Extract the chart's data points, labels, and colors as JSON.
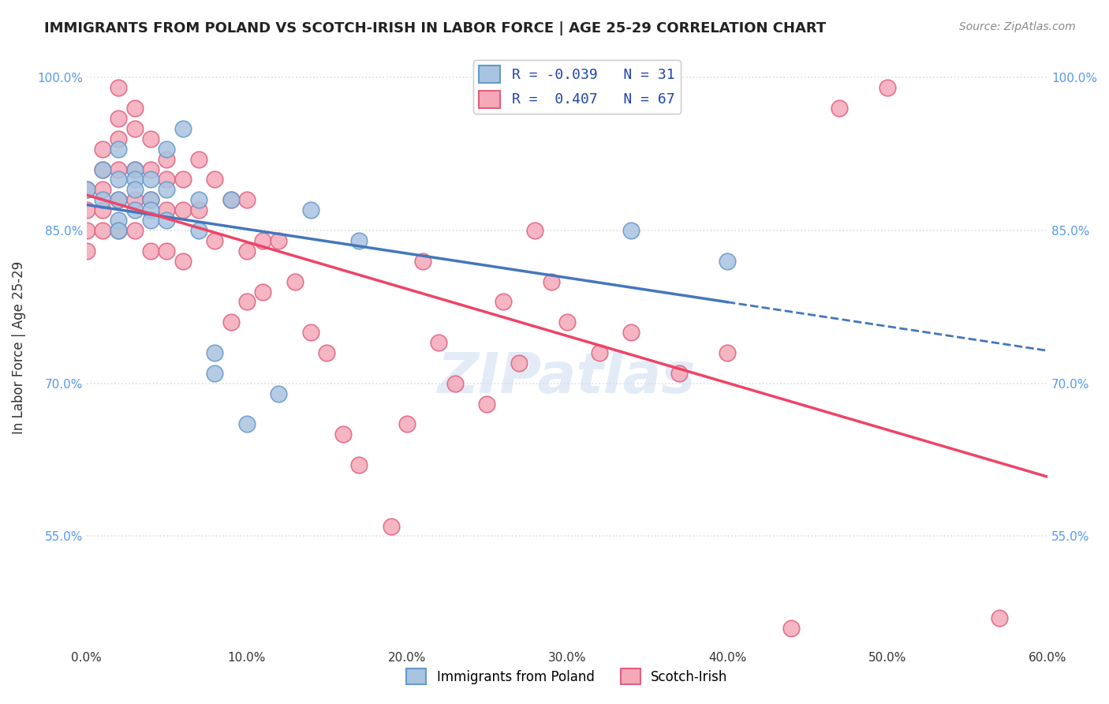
{
  "title": "IMMIGRANTS FROM POLAND VS SCOTCH-IRISH IN LABOR FORCE | AGE 25-29 CORRELATION CHART",
  "source": "Source: ZipAtlas.com",
  "ylabel": "In Labor Force | Age 25-29",
  "xlabel": "",
  "xlim": [
    0.0,
    0.6
  ],
  "ylim": [
    0.44,
    1.03
  ],
  "xtick_vals": [
    0.0,
    0.1,
    0.2,
    0.3,
    0.4,
    0.5,
    0.6
  ],
  "xtick_labels": [
    "0.0%",
    "10.0%",
    "20.0%",
    "30.0%",
    "40.0%",
    "50.0%",
    "60.0%"
  ],
  "ytick_vals": [
    0.55,
    0.7,
    0.85,
    1.0
  ],
  "ytick_labels": [
    "55.0%",
    "70.0%",
    "85.0%",
    "100.0%"
  ],
  "poland_color": "#a8c4e0",
  "scotch_color": "#f4a8b8",
  "poland_edge": "#6699cc",
  "scotch_edge": "#e06080",
  "trend_poland_color": "#4477bb",
  "trend_scotch_color": "#ee4466",
  "R_poland": -0.039,
  "N_poland": 31,
  "R_scotch": 0.407,
  "N_scotch": 67,
  "legend_R_color": "#2244aa",
  "poland_x": [
    0.0,
    0.01,
    0.01,
    0.02,
    0.02,
    0.02,
    0.02,
    0.02,
    0.03,
    0.03,
    0.03,
    0.03,
    0.04,
    0.04,
    0.04,
    0.04,
    0.05,
    0.05,
    0.05,
    0.06,
    0.07,
    0.07,
    0.08,
    0.08,
    0.09,
    0.1,
    0.12,
    0.14,
    0.17,
    0.34,
    0.4
  ],
  "poland_y": [
    0.89,
    0.91,
    0.88,
    0.93,
    0.9,
    0.88,
    0.86,
    0.85,
    0.91,
    0.9,
    0.89,
    0.87,
    0.9,
    0.88,
    0.87,
    0.86,
    0.93,
    0.89,
    0.86,
    0.95,
    0.88,
    0.85,
    0.73,
    0.71,
    0.88,
    0.66,
    0.69,
    0.87,
    0.84,
    0.85,
    0.82
  ],
  "scotch_x": [
    0.0,
    0.0,
    0.0,
    0.0,
    0.01,
    0.01,
    0.01,
    0.01,
    0.01,
    0.02,
    0.02,
    0.02,
    0.02,
    0.02,
    0.02,
    0.03,
    0.03,
    0.03,
    0.03,
    0.03,
    0.04,
    0.04,
    0.04,
    0.04,
    0.05,
    0.05,
    0.05,
    0.05,
    0.06,
    0.06,
    0.06,
    0.07,
    0.07,
    0.08,
    0.08,
    0.09,
    0.09,
    0.1,
    0.1,
    0.1,
    0.11,
    0.11,
    0.12,
    0.13,
    0.14,
    0.15,
    0.16,
    0.17,
    0.19,
    0.2,
    0.21,
    0.22,
    0.23,
    0.25,
    0.26,
    0.27,
    0.28,
    0.29,
    0.3,
    0.32,
    0.34,
    0.37,
    0.4,
    0.44,
    0.47,
    0.5,
    0.57
  ],
  "scotch_y": [
    0.89,
    0.87,
    0.85,
    0.83,
    0.93,
    0.91,
    0.89,
    0.87,
    0.85,
    0.99,
    0.96,
    0.94,
    0.91,
    0.88,
    0.85,
    0.97,
    0.95,
    0.91,
    0.88,
    0.85,
    0.94,
    0.91,
    0.88,
    0.83,
    0.92,
    0.9,
    0.87,
    0.83,
    0.9,
    0.87,
    0.82,
    0.92,
    0.87,
    0.9,
    0.84,
    0.88,
    0.76,
    0.88,
    0.83,
    0.78,
    0.84,
    0.79,
    0.84,
    0.8,
    0.75,
    0.73,
    0.65,
    0.62,
    0.56,
    0.66,
    0.82,
    0.74,
    0.7,
    0.68,
    0.78,
    0.72,
    0.85,
    0.8,
    0.76,
    0.73,
    0.75,
    0.71,
    0.73,
    0.46,
    0.97,
    0.99,
    0.47
  ],
  "background_color": "#ffffff",
  "grid_color": "#dddddd",
  "watermark": "ZIPatlas"
}
